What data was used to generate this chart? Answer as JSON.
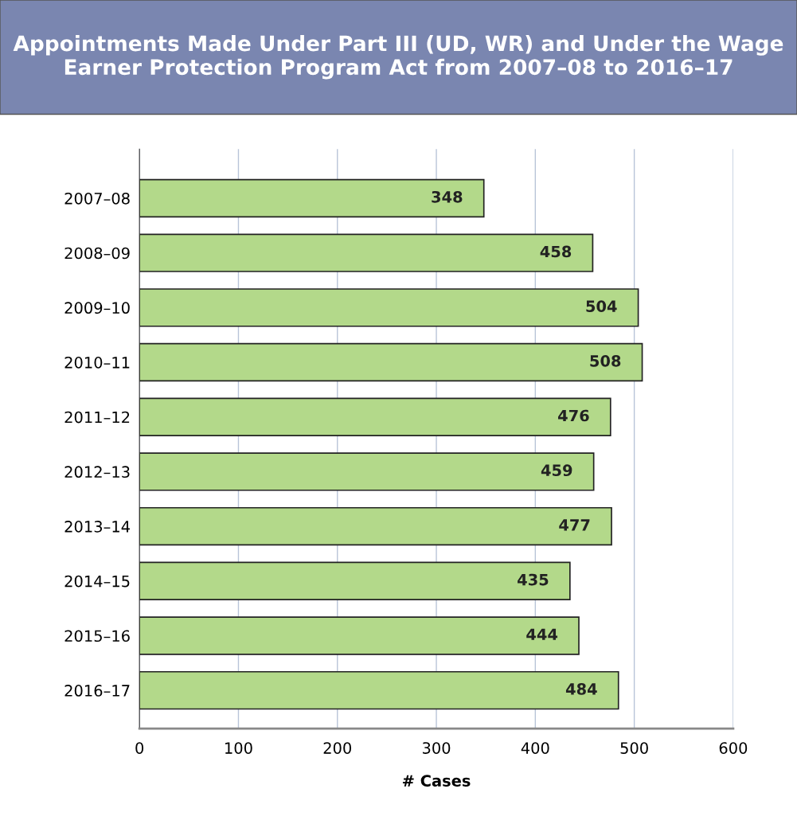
{
  "chart_data": {
    "type": "bar",
    "orientation": "horizontal",
    "title": "Appointments Made Under Part III (UD, WR) and Under the Wage Earner Protection Program Act from 2007–08 to 2016–17",
    "categories": [
      "2007–08",
      "2008–09",
      "2009–10",
      "2010–11",
      "2011–12",
      "2012–13",
      "2013–14",
      "2014–15",
      "2015–16",
      "2016–17"
    ],
    "values": [
      348,
      458,
      504,
      508,
      476,
      459,
      477,
      435,
      444,
      484
    ],
    "color": "#b3d98a",
    "xlabel": "# Cases",
    "xlim": [
      0,
      600
    ],
    "xticks": [
      0,
      100,
      200,
      300,
      400,
      500,
      600
    ],
    "grid": "x",
    "data_labels": true,
    "legend": false
  }
}
